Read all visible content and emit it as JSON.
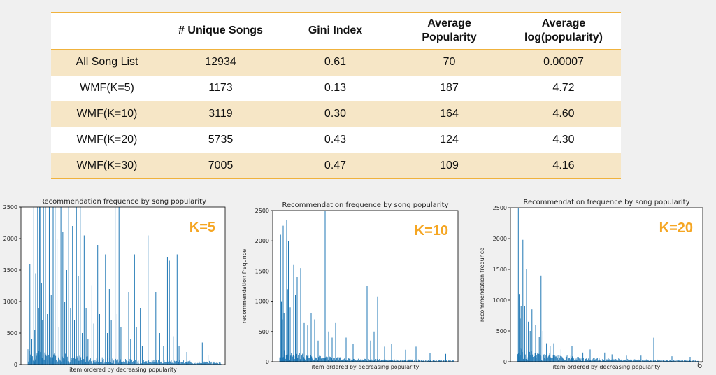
{
  "table": {
    "headers": [
      "",
      "# Unique Songs",
      "Gini Index",
      "Average\nPopularity",
      "Average\nlog(popularity)"
    ],
    "rows": [
      [
        "All Song List",
        "12934",
        "0.61",
        "70",
        "0.00007"
      ],
      [
        "WMF(K=5)",
        "1173",
        "0.13",
        "187",
        "4.72"
      ],
      [
        "WMF(K=10)",
        "3119",
        "0.30",
        "164",
        "4.60"
      ],
      [
        "WMF(K=20)",
        "5735",
        "0.43",
        "124",
        "4.30"
      ],
      [
        "WMF(K=30)",
        "7005",
        "0.47",
        "109",
        "4.16"
      ]
    ]
  },
  "page_number": "6",
  "chart_data": [
    {
      "type": "bar",
      "title": "Recommendation frequence by song popularity",
      "xlabel": "item ordered by decreasing popularity",
      "ylabel": "",
      "annotation": "K=5",
      "ylim": [
        0,
        2500
      ],
      "yticks": [
        0,
        500,
        1000,
        1500,
        2000,
        2500
      ],
      "color": "#1f77b4",
      "annotation_color": "#f5a623",
      "peaks": [
        [
          0.01,
          1600
        ],
        [
          0.02,
          400
        ],
        [
          0.03,
          2500
        ],
        [
          0.035,
          550
        ],
        [
          0.04,
          1450
        ],
        [
          0.05,
          2500
        ],
        [
          0.055,
          900
        ],
        [
          0.06,
          2500
        ],
        [
          0.065,
          2500
        ],
        [
          0.07,
          1300
        ],
        [
          0.075,
          700
        ],
        [
          0.08,
          2500
        ],
        [
          0.09,
          2500
        ],
        [
          0.1,
          800
        ],
        [
          0.11,
          2500
        ],
        [
          0.12,
          1100
        ],
        [
          0.13,
          2500
        ],
        [
          0.14,
          2500
        ],
        [
          0.15,
          2000
        ],
        [
          0.16,
          600
        ],
        [
          0.17,
          2500
        ],
        [
          0.18,
          2100
        ],
        [
          0.19,
          1000
        ],
        [
          0.2,
          1500
        ],
        [
          0.21,
          2500
        ],
        [
          0.22,
          900
        ],
        [
          0.23,
          2200
        ],
        [
          0.24,
          700
        ],
        [
          0.25,
          2500
        ],
        [
          0.26,
          1400
        ],
        [
          0.27,
          2500
        ],
        [
          0.28,
          500
        ],
        [
          0.29,
          2050
        ],
        [
          0.3,
          900
        ],
        [
          0.31,
          400
        ],
        [
          0.33,
          1250
        ],
        [
          0.34,
          650
        ],
        [
          0.36,
          1900
        ],
        [
          0.37,
          800
        ],
        [
          0.4,
          1750
        ],
        [
          0.41,
          500
        ],
        [
          0.42,
          1200
        ],
        [
          0.43,
          700
        ],
        [
          0.45,
          2500
        ],
        [
          0.46,
          800
        ],
        [
          0.47,
          2500
        ],
        [
          0.48,
          600
        ],
        [
          0.52,
          1150
        ],
        [
          0.53,
          400
        ],
        [
          0.55,
          1750
        ],
        [
          0.56,
          600
        ],
        [
          0.58,
          900
        ],
        [
          0.59,
          300
        ],
        [
          0.62,
          2050
        ],
        [
          0.63,
          400
        ],
        [
          0.66,
          1150
        ],
        [
          0.68,
          500
        ],
        [
          0.7,
          300
        ],
        [
          0.72,
          1700
        ],
        [
          0.73,
          1650
        ],
        [
          0.75,
          450
        ],
        [
          0.77,
          1750
        ],
        [
          0.78,
          300
        ],
        [
          0.82,
          200
        ],
        [
          0.9,
          350
        ],
        [
          0.93,
          150
        ]
      ]
    },
    {
      "type": "bar",
      "title": "Recommendation frequence by song popularity",
      "xlabel": "item ordered by decreasing popularity",
      "ylabel": "recommendation frequnce",
      "annotation": "K=10",
      "ylim": [
        0,
        2500
      ],
      "yticks": [
        0,
        500,
        1000,
        1500,
        2000,
        2500
      ],
      "color": "#1f77b4",
      "annotation_color": "#f5a623",
      "peaks": [
        [
          0.005,
          2100
        ],
        [
          0.01,
          1000
        ],
        [
          0.015,
          700
        ],
        [
          0.02,
          2250
        ],
        [
          0.025,
          800
        ],
        [
          0.03,
          1700
        ],
        [
          0.04,
          2350
        ],
        [
          0.045,
          1200
        ],
        [
          0.05,
          2000
        ],
        [
          0.06,
          900
        ],
        [
          0.07,
          2500
        ],
        [
          0.08,
          1600
        ],
        [
          0.09,
          1100
        ],
        [
          0.1,
          1400
        ],
        [
          0.12,
          1550
        ],
        [
          0.14,
          650
        ],
        [
          0.15,
          1450
        ],
        [
          0.16,
          600
        ],
        [
          0.18,
          800
        ],
        [
          0.2,
          700
        ],
        [
          0.22,
          350
        ],
        [
          0.26,
          2500
        ],
        [
          0.28,
          500
        ],
        [
          0.3,
          400
        ],
        [
          0.32,
          650
        ],
        [
          0.35,
          300
        ],
        [
          0.38,
          400
        ],
        [
          0.42,
          300
        ],
        [
          0.5,
          1250
        ],
        [
          0.52,
          350
        ],
        [
          0.54,
          500
        ],
        [
          0.56,
          1080
        ],
        [
          0.6,
          250
        ],
        [
          0.64,
          300
        ],
        [
          0.72,
          200
        ],
        [
          0.78,
          250
        ],
        [
          0.86,
          150
        ],
        [
          0.95,
          130
        ]
      ]
    },
    {
      "type": "bar",
      "title": "Recommendation frequence by song popularity",
      "xlabel": "item ordered by decreasing popularity",
      "ylabel": "recommendation frequnce",
      "annotation": "K=20",
      "ylim": [
        0,
        2500
      ],
      "yticks": [
        0,
        500,
        1000,
        1500,
        2000,
        2500
      ],
      "color": "#1f77b4",
      "annotation_color": "#f5a623",
      "peaks": [
        [
          0.005,
          2500
        ],
        [
          0.01,
          1100
        ],
        [
          0.015,
          700
        ],
        [
          0.02,
          900
        ],
        [
          0.03,
          1980
        ],
        [
          0.04,
          900
        ],
        [
          0.05,
          1500
        ],
        [
          0.06,
          650
        ],
        [
          0.07,
          500
        ],
        [
          0.08,
          850
        ],
        [
          0.1,
          600
        ],
        [
          0.12,
          400
        ],
        [
          0.13,
          1400
        ],
        [
          0.14,
          500
        ],
        [
          0.16,
          300
        ],
        [
          0.18,
          250
        ],
        [
          0.2,
          300
        ],
        [
          0.24,
          200
        ],
        [
          0.3,
          250
        ],
        [
          0.36,
          150
        ],
        [
          0.4,
          200
        ],
        [
          0.48,
          150
        ],
        [
          0.52,
          120
        ],
        [
          0.6,
          100
        ],
        [
          0.68,
          100
        ],
        [
          0.75,
          390
        ],
        [
          0.85,
          90
        ],
        [
          0.95,
          80
        ]
      ]
    }
  ]
}
